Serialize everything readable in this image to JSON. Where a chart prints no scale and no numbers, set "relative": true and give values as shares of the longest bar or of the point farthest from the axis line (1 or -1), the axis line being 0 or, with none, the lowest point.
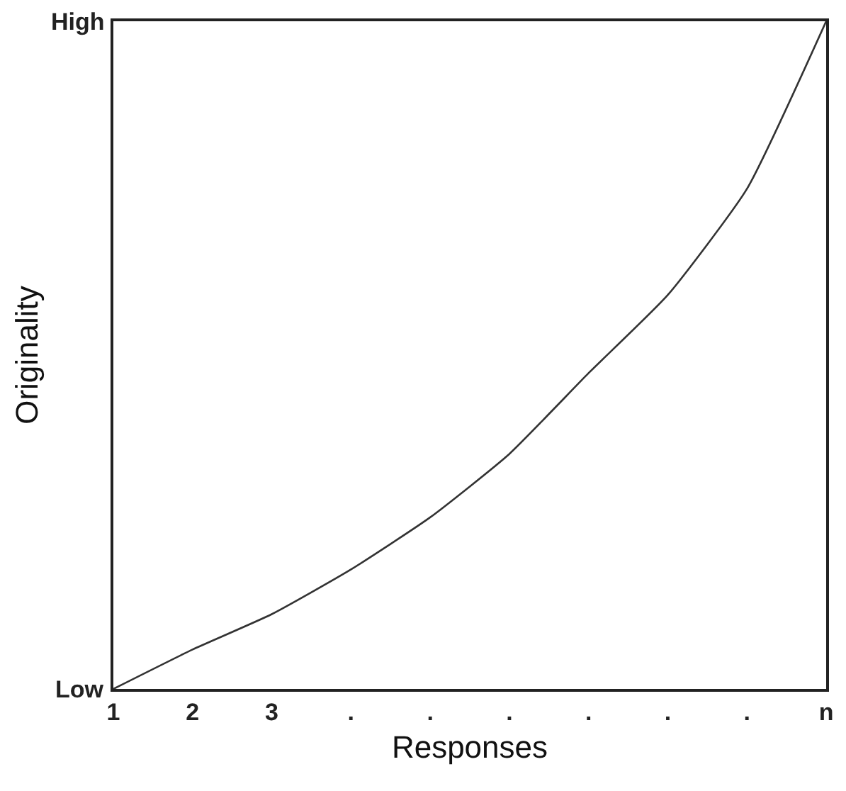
{
  "chart_data": {
    "type": "line",
    "relative": true,
    "xlabel": "Responses",
    "ylabel": "Originality",
    "categories": [
      "1",
      "2",
      "3",
      ".",
      ".",
      ".",
      ".",
      ".",
      ".",
      "n"
    ],
    "series": [
      {
        "color": "#333333",
        "values": [
          0,
          0.059,
          0.112,
          0.179,
          0.257,
          0.352,
          0.473,
          0.59,
          0.749,
          1
        ]
      }
    ],
    "annotations": [
      "High",
      "Low"
    ],
    "marker": "none",
    "line_style": "solid"
  }
}
